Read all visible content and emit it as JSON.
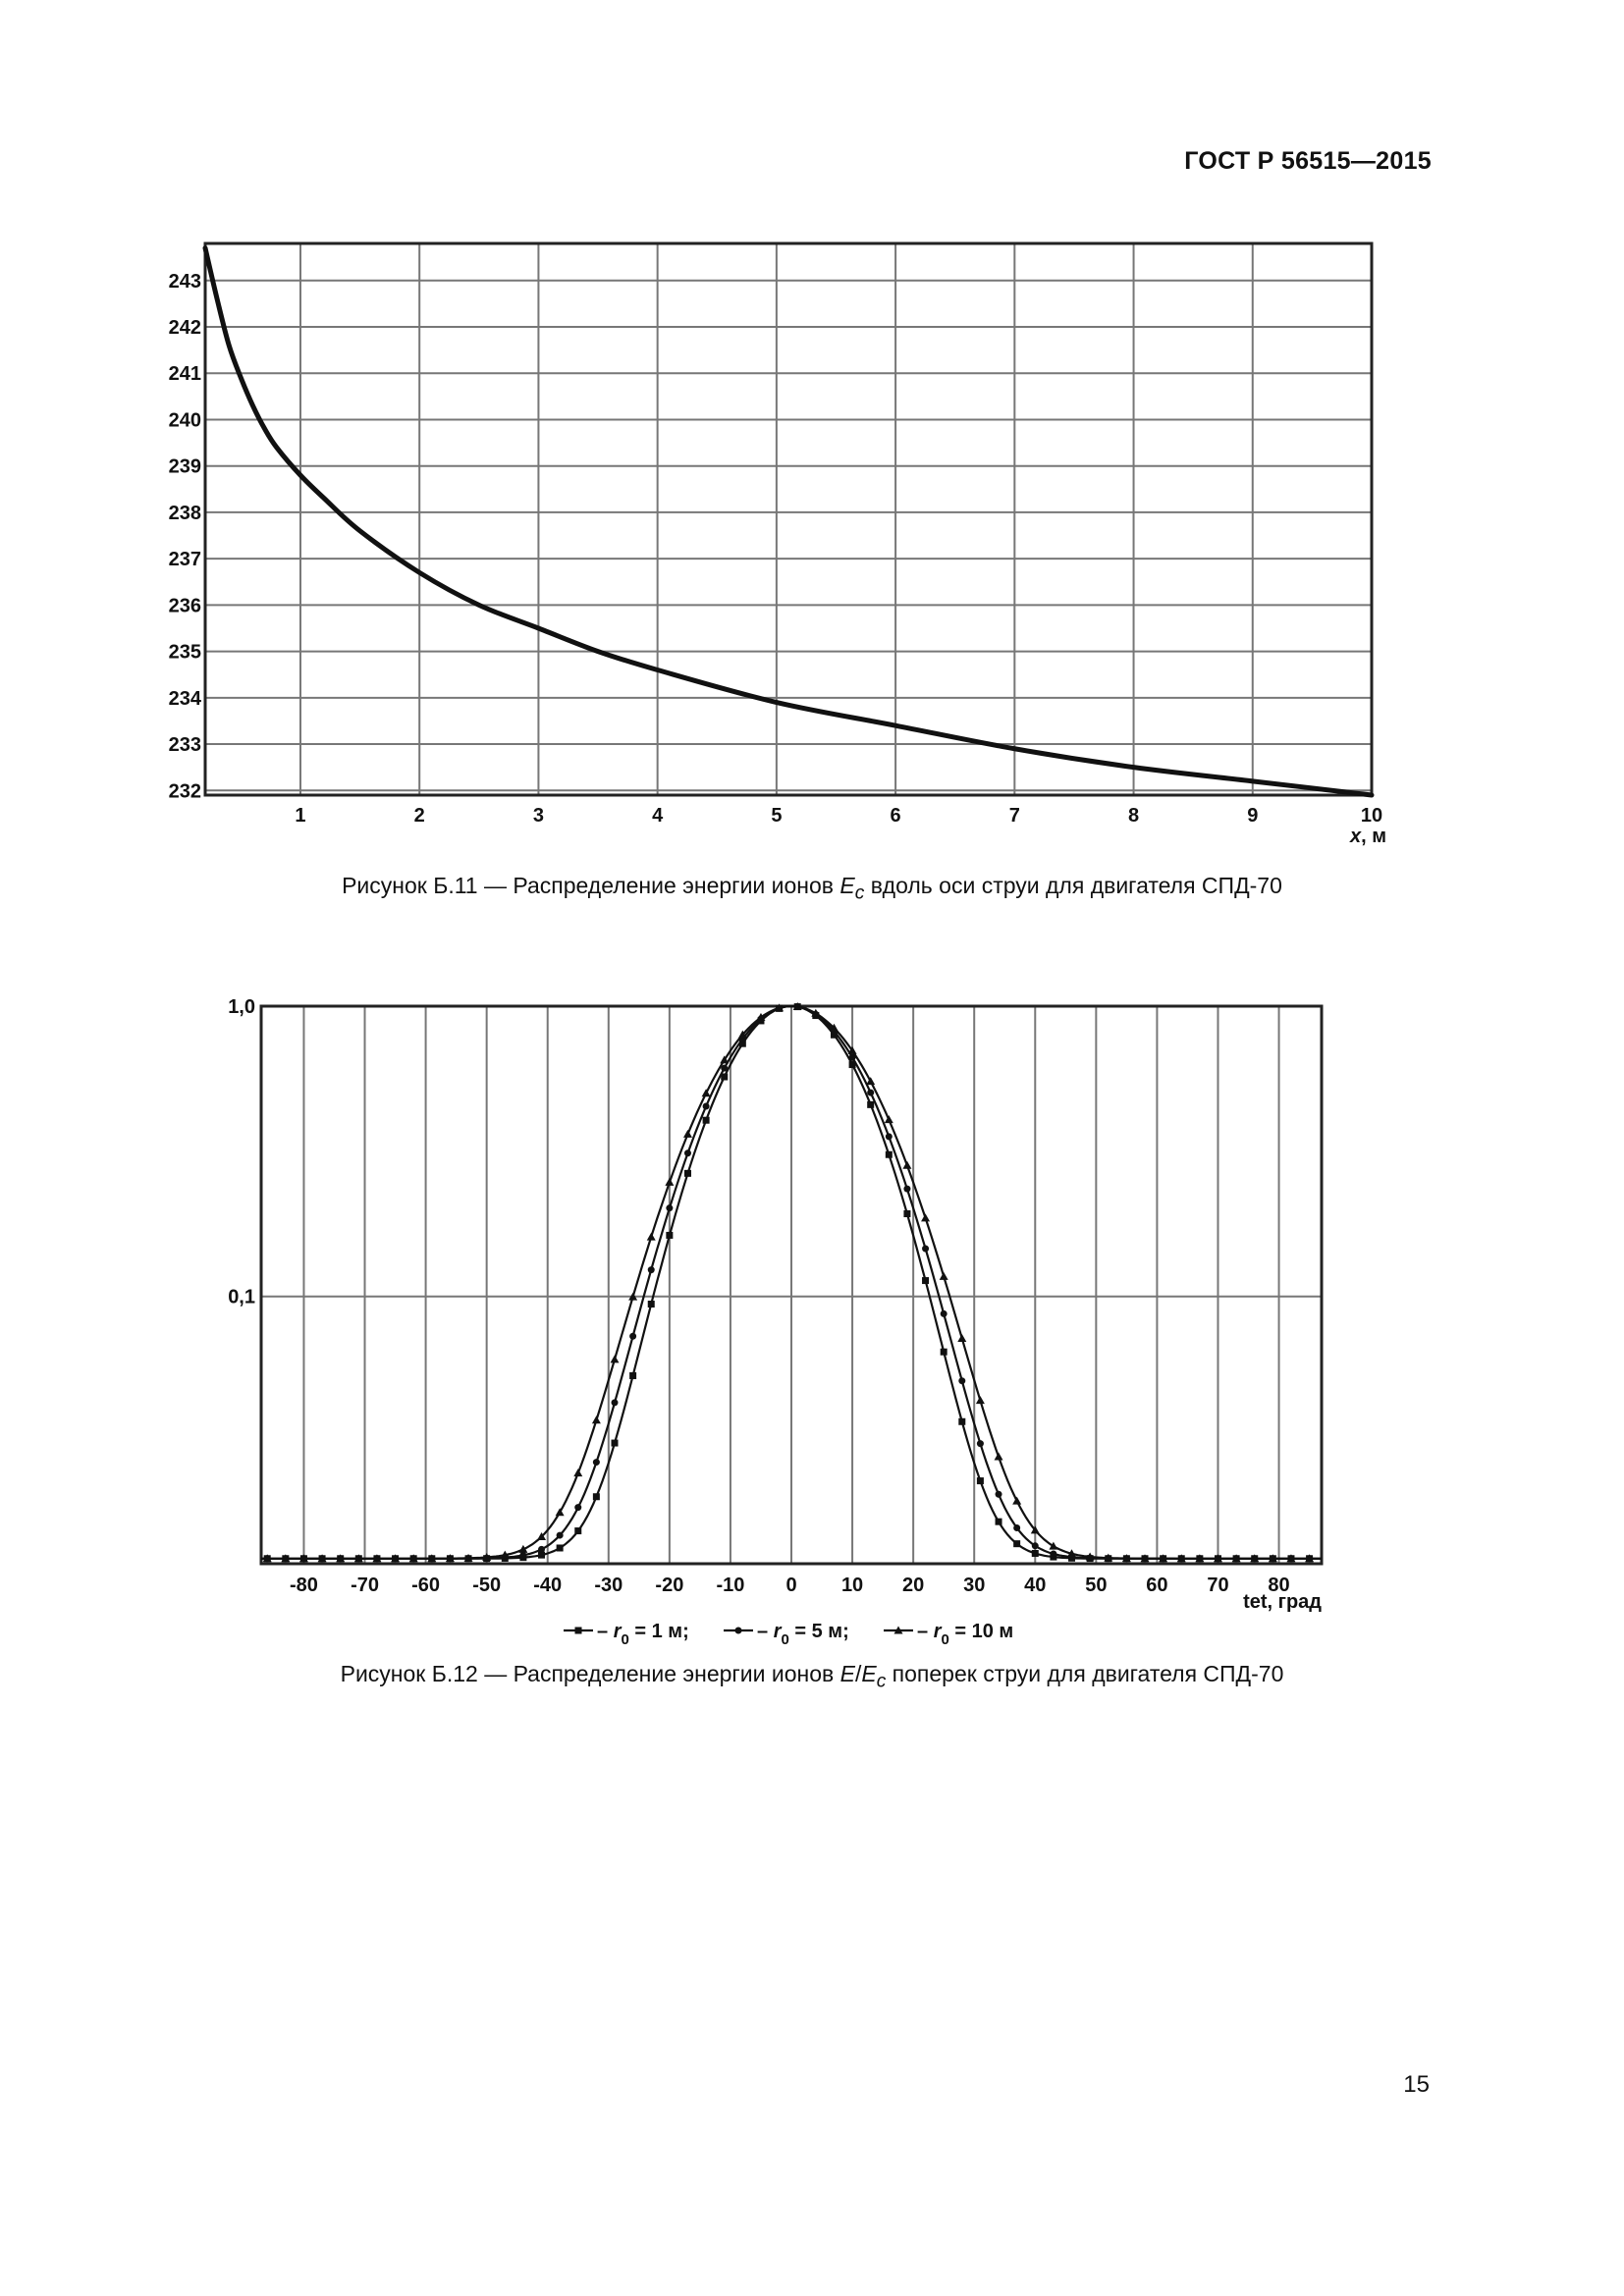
{
  "header": {
    "doc_id": "ГОСТ Р 56515—2015"
  },
  "page_number": "15",
  "figures": [
    {
      "caption_prefix": "Рисунок Б.11 — Распределение энергии ионов ",
      "caption_var": "E",
      "caption_sub": "c",
      "caption_suffix": " вдоль оси струи для двигателя СПД-70"
    },
    {
      "caption_prefix": "Рисунок Б.12 — Распределение энергии ионов ",
      "caption_var": "E",
      "caption_slash": "/",
      "caption_var2": "E",
      "caption_sub": "c",
      "caption_suffix": " поперек струи для двигателя СПД-70"
    }
  ],
  "chart_data": [
    {
      "type": "line",
      "title": "",
      "xlabel": "x, м",
      "xlabel_var": "x",
      "xlabel_unit": ", м",
      "ylabel": "",
      "xlim": [
        0.2,
        10
      ],
      "ylim": [
        231.9,
        243.8
      ],
      "x_ticks": [
        "1",
        "2",
        "3",
        "4",
        "5",
        "6",
        "7",
        "8",
        "9",
        "10"
      ],
      "y_ticks": [
        "232",
        "233",
        "234",
        "235",
        "236",
        "237",
        "238",
        "239",
        "240",
        "241",
        "242",
        "243"
      ],
      "grid": true,
      "series": [
        {
          "name": "E_c",
          "x": [
            0.2,
            0.3,
            0.4,
            0.5,
            0.6,
            0.7,
            0.8,
            1.0,
            1.2,
            1.5,
            2.0,
            2.5,
            3.0,
            3.5,
            4.0,
            5.0,
            6.0,
            7.0,
            8.0,
            9.0,
            10.0
          ],
          "y": [
            243.7,
            242.6,
            241.6,
            240.9,
            240.3,
            239.8,
            239.4,
            238.8,
            238.3,
            237.6,
            236.7,
            236.0,
            235.5,
            235.0,
            234.6,
            233.9,
            233.4,
            232.9,
            232.5,
            232.2,
            231.9
          ]
        }
      ]
    },
    {
      "type": "line",
      "title": "",
      "xlabel": "tet, град",
      "ylabel": "",
      "yscale": "log",
      "xlim": [
        -87,
        87
      ],
      "ylim": [
        0.012,
        1.0
      ],
      "x_ticks": [
        "-80",
        "-70",
        "-60",
        "-50",
        "-40",
        "-30",
        "-20",
        "-10",
        "0",
        "10",
        "20",
        "30",
        "40",
        "50",
        "60",
        "70",
        "80"
      ],
      "y_ticks": [
        "0,1",
        "1,0"
      ],
      "grid": true,
      "legend": {
        "placement": "bottom",
        "entries": [
          {
            "prefix": "– ",
            "var": "r",
            "sub": "0",
            "text": " = 1 м;",
            "marker": "square"
          },
          {
            "prefix": "– ",
            "var": "r",
            "sub": "0",
            "text": " = 5 м;",
            "marker": "circle"
          },
          {
            "prefix": "– ",
            "var": "r",
            "sub": "0",
            "text": " = 10 м",
            "marker": "triangle"
          }
        ]
      },
      "series": [
        {
          "name": "r0 = 1 м",
          "marker": "square",
          "sigma_deg": 10.3,
          "baseline": 0.0125,
          "peak": 1.0
        },
        {
          "name": "r0 = 5 м",
          "marker": "circle",
          "sigma_deg": 11.0,
          "baseline": 0.0125,
          "peak": 1.0
        },
        {
          "name": "r0 = 10 м",
          "marker": "triangle",
          "sigma_deg": 11.8,
          "baseline": 0.0125,
          "peak": 1.0
        }
      ]
    }
  ]
}
